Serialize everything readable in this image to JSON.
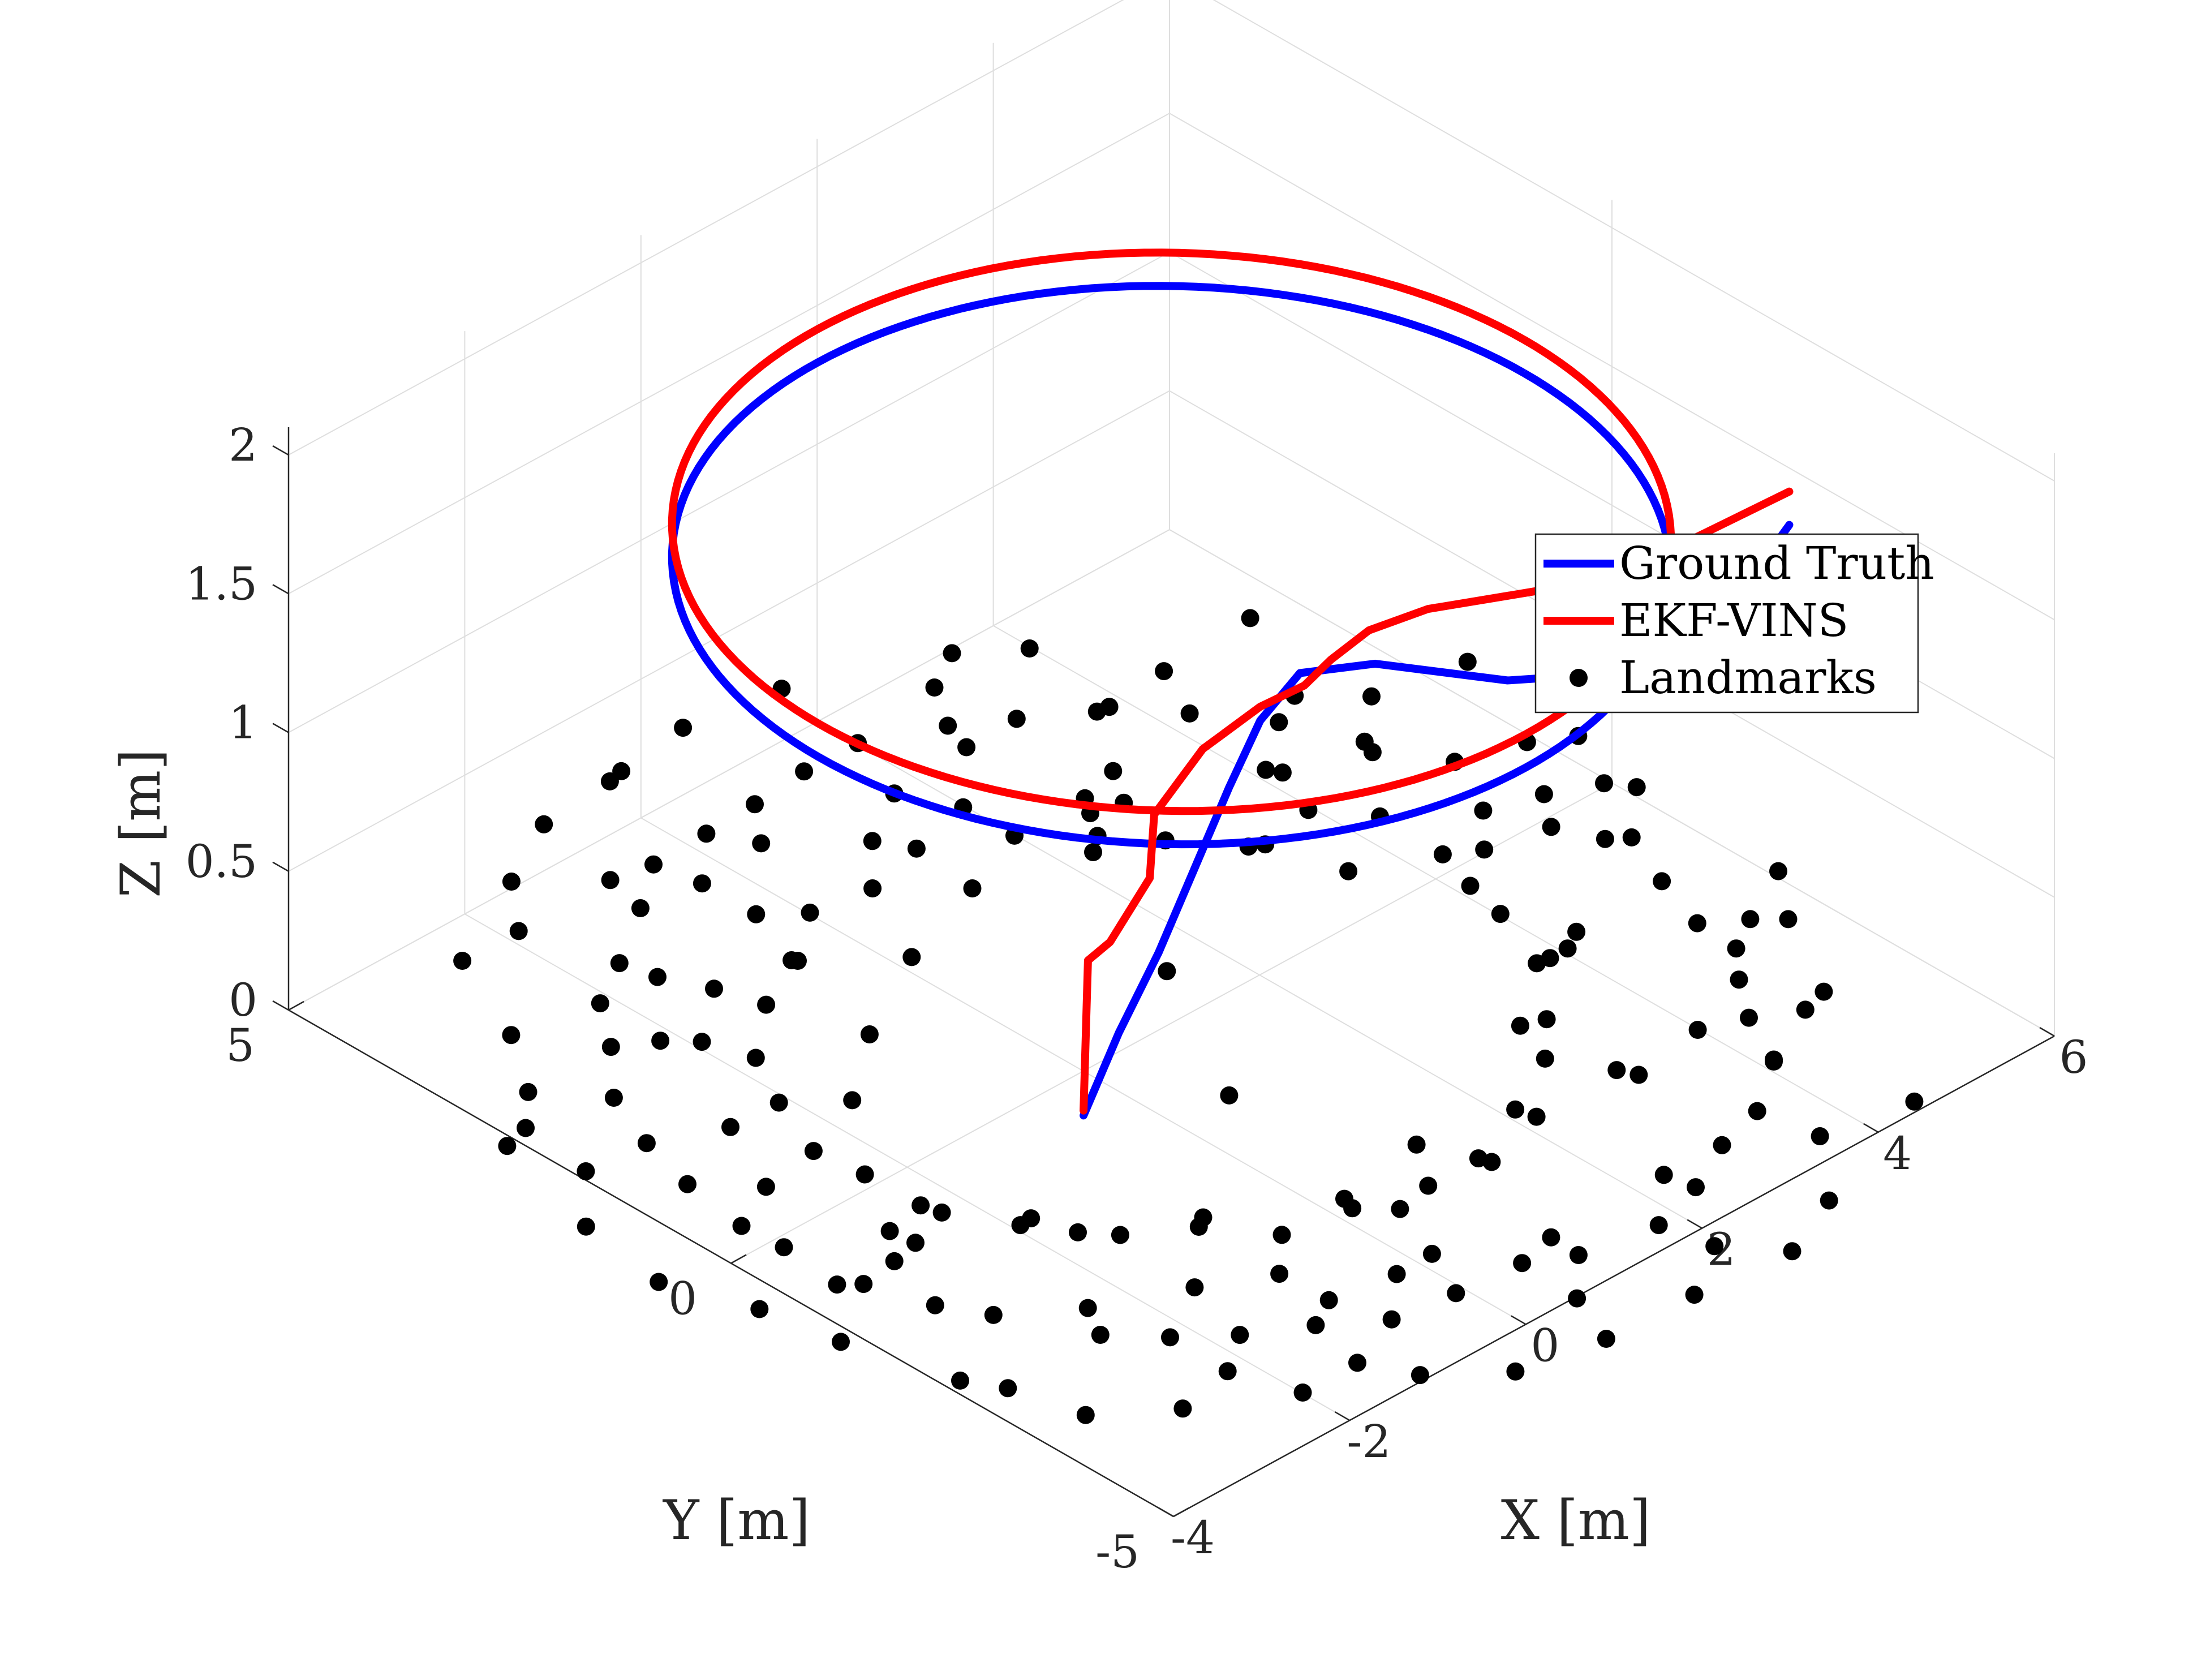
{
  "chart_data": {
    "type": "scatter",
    "projection": "3d",
    "xlabel": "X [m]",
    "ylabel": "Y [m]",
    "zlabel": "Z [m]",
    "xlim": [
      -4,
      6
    ],
    "ylim": [
      -5,
      5
    ],
    "zlim": [
      0,
      2.1
    ],
    "xticks": [
      -4,
      -2,
      0,
      2,
      4,
      6
    ],
    "yticks": [
      -5,
      0,
      5
    ],
    "zticks": [
      0,
      0.5,
      1,
      1.5,
      2
    ],
    "xtick_labels": [
      "-4",
      "-2",
      "0",
      "2",
      "4",
      "6"
    ],
    "ytick_labels": [
      "-5",
      "0",
      "5"
    ],
    "ztick_labels": [
      "0",
      "0.5",
      "1",
      "1.5",
      "2"
    ],
    "grid": true,
    "legend_position": "top-right",
    "legend": [
      {
        "label": "Ground Truth",
        "color": "#0000ff",
        "kind": "line"
      },
      {
        "label": "EKF-VINS",
        "color": "#ff0000",
        "kind": "line"
      },
      {
        "label": "Landmarks",
        "color": "#000000",
        "kind": "marker"
      }
    ],
    "series": [
      {
        "name": "Ground Truth",
        "color": "#0000ff",
        "circle": {
          "center": [
            1,
            0
          ],
          "radius": 4,
          "z": 1.65
        },
        "takeoff": [
          [
            -0.45,
            -0.45,
            0.0
          ],
          [
            -0.25,
            -0.65,
            0.3
          ],
          [
            -0.05,
            -0.9,
            0.6
          ],
          [
            0.15,
            -1.1,
            0.9
          ],
          [
            0.35,
            -1.3,
            1.2
          ],
          [
            0.5,
            -1.5,
            1.45
          ],
          [
            0.65,
            -1.8,
            1.65
          ],
          [
            0.9,
            -2.4,
            1.75
          ],
          [
            1.5,
            -3.3,
            1.75
          ],
          [
            2.5,
            -3.9,
            1.72
          ],
          [
            3.7,
            -3.6,
            1.68
          ],
          [
            5,
            -3,
            1.65
          ]
        ]
      },
      {
        "name": "EKF-VINS",
        "color": "#ff0000",
        "circle": {
          "center": [
            1,
            0
          ],
          "radius": 4,
          "z": 1.77
        },
        "takeoff": [
          [
            -0.4,
            -0.4,
            0.0
          ],
          [
            -0.4,
            -0.45,
            0.55
          ],
          [
            -0.45,
            -0.75,
            0.68
          ],
          [
            -0.05,
            -0.8,
            0.85
          ],
          [
            0.0,
            -0.8,
            1.07
          ],
          [
            0.3,
            -1.05,
            1.3
          ],
          [
            0.5,
            -1.5,
            1.5
          ],
          [
            0.55,
            -1.95,
            1.65
          ],
          [
            0.6,
            -2.2,
            1.78
          ],
          [
            0.78,
            -2.45,
            1.9
          ],
          [
            1.2,
            -2.7,
            1.95
          ],
          [
            2.2,
            -3.0,
            1.9
          ],
          [
            3.5,
            -3.1,
            1.83
          ],
          [
            5,
            -3,
            1.77
          ]
        ]
      },
      {
        "name": "Landmarks",
        "color": "#000000",
        "points": [
          [
            5.49,
            0.26,
            0
          ],
          [
            5.39,
            -0.53,
            0
          ],
          [
            5.29,
            -1.27,
            0
          ],
          [
            5.07,
            -1.89,
            0
          ],
          [
            4.74,
            -2.69,
            0
          ],
          [
            4.41,
            -3.13,
            0
          ],
          [
            4.11,
            -3.71,
            0
          ],
          [
            3.51,
            -4.12,
            0
          ],
          [
            2.96,
            -4.27,
            0
          ],
          [
            2.38,
            -4.55,
            0
          ],
          [
            1.78,
            -4.73,
            0
          ],
          [
            1.01,
            -4.59,
            0
          ],
          [
            0.6,
            -4.36,
            0
          ],
          [
            -0.09,
            -4.3,
            0
          ],
          [
            -0.73,
            -4.21,
            0
          ],
          [
            -1.23,
            -3.85,
            0
          ],
          [
            -1.77,
            -3.53,
            0
          ],
          [
            -2.2,
            -3.17,
            0
          ],
          [
            -2.58,
            -2.76,
            0
          ],
          [
            -3.0,
            -1.97,
            0
          ],
          [
            -3.24,
            -1.55,
            0
          ],
          [
            -3.44,
            -0.94,
            0
          ],
          [
            -3.53,
            -0.13,
            0
          ],
          [
            -3.56,
            0.32,
            0
          ],
          [
            -3.45,
            1.04,
            0
          ],
          [
            -3.27,
            1.68,
            0
          ],
          [
            -3.0,
            2.32,
            0
          ],
          [
            -2.5,
            2.85,
            0
          ],
          [
            -2.12,
            3.35,
            0
          ],
          [
            -1.6,
            3.65,
            0
          ],
          [
            -0.92,
            4.09,
            0
          ],
          [
            -0.4,
            4.46,
            0
          ],
          [
            0.22,
            4.48,
            0
          ],
          [
            0.8,
            4.51,
            0
          ],
          [
            1.42,
            4.57,
            0
          ],
          [
            2.02,
            4.56,
            0
          ],
          [
            2.72,
            4.24,
            0
          ],
          [
            3.19,
            3.93,
            0
          ],
          [
            3.73,
            3.56,
            0
          ],
          [
            4.25,
            3.03,
            0
          ],
          [
            4.68,
            2.45,
            0
          ],
          [
            4.98,
            1.78,
            0
          ],
          [
            5.3,
            1.08,
            0
          ],
          [
            4.29,
            0.21,
            0
          ],
          [
            4.02,
            -0.71,
            0
          ],
          [
            3.86,
            -1.43,
            0
          ],
          [
            3.22,
            -2.03,
            0
          ],
          [
            2.81,
            -2.42,
            0
          ],
          [
            2.12,
            -2.77,
            0
          ],
          [
            1.41,
            -3.06,
            0
          ],
          [
            0.84,
            -3.06,
            0
          ],
          [
            0.17,
            -2.87,
            0
          ],
          [
            -0.51,
            -2.75,
            0
          ],
          [
            -0.91,
            -2.21,
            0
          ],
          [
            -1.45,
            -1.86,
            0
          ],
          [
            -1.93,
            -1.21,
            0
          ],
          [
            -2.26,
            -0.65,
            0
          ],
          [
            -2.32,
            0.16,
            0
          ],
          [
            -2.38,
            0.68,
            0
          ],
          [
            -2.09,
            1.36,
            0
          ],
          [
            -1.77,
            1.94,
            0
          ],
          [
            -1.17,
            2.42,
            0
          ],
          [
            -0.54,
            2.69,
            0
          ],
          [
            0.02,
            3.11,
            0
          ],
          [
            0.63,
            3.01,
            0
          ],
          [
            1.29,
            3.17,
            0
          ],
          [
            1.99,
            2.76,
            0
          ],
          [
            2.47,
            2.3,
            0
          ],
          [
            2.82,
            1.88,
            0
          ],
          [
            3.36,
            1.29,
            0
          ],
          [
            3.57,
            0.56,
            0
          ],
          [
            6.39,
            2.02,
            0
          ],
          [
            5.92,
            0.88,
            0
          ],
          [
            6.1,
            -0.18,
            0
          ],
          [
            5.56,
            -0.66,
            0
          ],
          [
            6.07,
            -1.81,
            0
          ],
          [
            5.64,
            -2.35,
            0
          ],
          [
            5.11,
            -3.28,
            0
          ],
          [
            4.13,
            -3.69,
            0
          ],
          [
            4.52,
            -4.89,
            0
          ],
          [
            3.02,
            -5.42,
            0
          ],
          [
            2.29,
            -5.73,
            0
          ],
          [
            1.28,
            -5.63,
            0
          ],
          [
            0.32,
            -5.59,
            0
          ],
          [
            -0.54,
            -5.42,
            0
          ],
          [
            -1.13,
            -4.93,
            0
          ],
          [
            -1.99,
            -4.46,
            0
          ],
          [
            -2.85,
            -3.96,
            0
          ],
          [
            -3.48,
            -3.49,
            0
          ],
          [
            -3.86,
            -2.45,
            0
          ],
          [
            -4.16,
            -1.4,
            0
          ],
          [
            -4.3,
            -0.62,
            0
          ],
          [
            -4.61,
            0.21,
            0
          ],
          [
            -4.47,
            1.17,
            0
          ],
          [
            -4.11,
            2.42,
            0
          ],
          [
            -3.44,
            2.85,
            0
          ],
          [
            -2.96,
            3.52,
            0
          ],
          [
            -2.49,
            4.54,
            0
          ],
          [
            -1.4,
            5.07,
            0
          ],
          [
            -0.63,
            5.47,
            0
          ],
          [
            0.19,
            5.54,
            0
          ],
          [
            1.16,
            5.68,
            0
          ],
          [
            2.13,
            5.53,
            0
          ],
          [
            3.48,
            4.95,
            0
          ],
          [
            3.98,
            4.57,
            0
          ],
          [
            4.53,
            3.6,
            0
          ],
          [
            5.57,
            3.66,
            0
          ],
          [
            4.92,
            1.63,
            0
          ],
          [
            4.06,
            -1.43,
            0
          ],
          [
            2.17,
            -2.96,
            0
          ],
          [
            0.17,
            -3.77,
            0
          ],
          [
            -1.55,
            -2.8,
            0
          ],
          [
            -2.75,
            -0.55,
            0
          ],
          [
            -2.62,
            1.38,
            0
          ],
          [
            -1.52,
            3.3,
            0
          ],
          [
            -0.31,
            3.39,
            0
          ],
          [
            1.11,
            3.49,
            0
          ],
          [
            2.66,
            2.57,
            0
          ],
          [
            4.19,
            1.92,
            0
          ],
          [
            5.2,
            -0.11,
            0
          ],
          [
            6.28,
            0.66,
            0
          ],
          [
            5.42,
            -2.14,
            0
          ],
          [
            4.82,
            -3.36,
            0
          ],
          [
            3.62,
            -4.72,
            0
          ],
          [
            1.89,
            -5.25,
            0
          ],
          [
            0.56,
            -5.02,
            0
          ],
          [
            -1.37,
            -4.46,
            0
          ],
          [
            -2.21,
            -3.83,
            0
          ],
          [
            -3.66,
            -2.79,
            0
          ],
          [
            -3.6,
            -0.8,
            0
          ],
          [
            -3.91,
            1.73,
            0
          ],
          [
            -3.82,
            2.5,
            0
          ],
          [
            -1.86,
            4.53,
            0
          ],
          [
            -0.81,
            4.54,
            0
          ],
          [
            0.36,
            5.58,
            0
          ],
          [
            3.03,
            4.7,
            0
          ],
          [
            3.85,
            3.54,
            0
          ],
          [
            5.04,
            2.63,
            0
          ],
          [
            5.48,
            2.2,
            0
          ],
          [
            4.97,
            0.43,
            0
          ],
          [
            5.95,
            0.04,
            0
          ],
          [
            5.04,
            -2.36,
            0
          ],
          [
            3.99,
            -2.97,
            0
          ],
          [
            3.19,
            -3.1,
            0
          ],
          [
            2.32,
            -4.25,
            0
          ],
          [
            1.03,
            -4.26,
            0
          ],
          [
            -0.24,
            -3.78,
            0
          ],
          [
            -0.9,
            -3.67,
            0
          ],
          [
            -1.67,
            -1.6,
            0
          ],
          [
            -2.31,
            -0.46,
            0
          ],
          [
            -3.02,
            0.58,
            0
          ],
          [
            -1.92,
            2.4,
            0
          ],
          [
            -0.31,
            4.0,
            0
          ],
          [
            0.44,
            4.08,
            0
          ],
          [
            1.72,
            3.85,
            0
          ],
          [
            2.61,
            3.92,
            0
          ],
          [
            3.22,
            2.87,
            0
          ],
          [
            4.12,
            2.04,
            0
          ],
          [
            4.58,
            0.03,
            0
          ],
          [
            4.28,
            -1.31,
            0
          ],
          [
            3.11,
            -2.93,
            0
          ],
          [
            1.45,
            -3.17,
            0
          ],
          [
            0.44,
            -3.14,
            0
          ],
          [
            -0.92,
            -3.13,
            0
          ],
          [
            -2.38,
            -2.42,
            0
          ],
          [
            -3.03,
            -0.88,
            0
          ],
          [
            -2.15,
            2.64,
            0
          ],
          [
            -1.31,
            2.87,
            0
          ],
          [
            -0.57,
            2.73,
            0
          ],
          [
            1.98,
            3.33,
            0
          ],
          [
            2.78,
            2.75,
            0
          ],
          [
            2.96,
            2.49,
            0
          ],
          [
            3.24,
            1.36,
            0
          ],
          [
            3.96,
            1.4,
            0
          ],
          [
            4.31,
            0.94,
            0
          ],
          [
            4.13,
            -0.26,
            0
          ],
          [
            3.73,
            -1.41,
            0
          ],
          [
            3.0,
            -1.95,
            0
          ],
          [
            1.19,
            -2.58,
            0
          ],
          [
            0.22,
            -2.73,
            0
          ],
          [
            -0.79,
            -2.14,
            0
          ],
          [
            -1.8,
            -1.2,
            0
          ],
          [
            -2.72,
            -0.81,
            0
          ],
          [
            -1.64,
            0.98,
            0
          ],
          [
            -0.87,
            1.55,
            0
          ],
          [
            0.16,
            2.1,
            0
          ],
          [
            1.21,
            2.46,
            0
          ],
          [
            2.28,
            2.16,
            0
          ],
          [
            0.6,
            -1.05,
            0
          ],
          [
            1.5,
            0.55,
            0
          ]
        ]
      }
    ]
  }
}
